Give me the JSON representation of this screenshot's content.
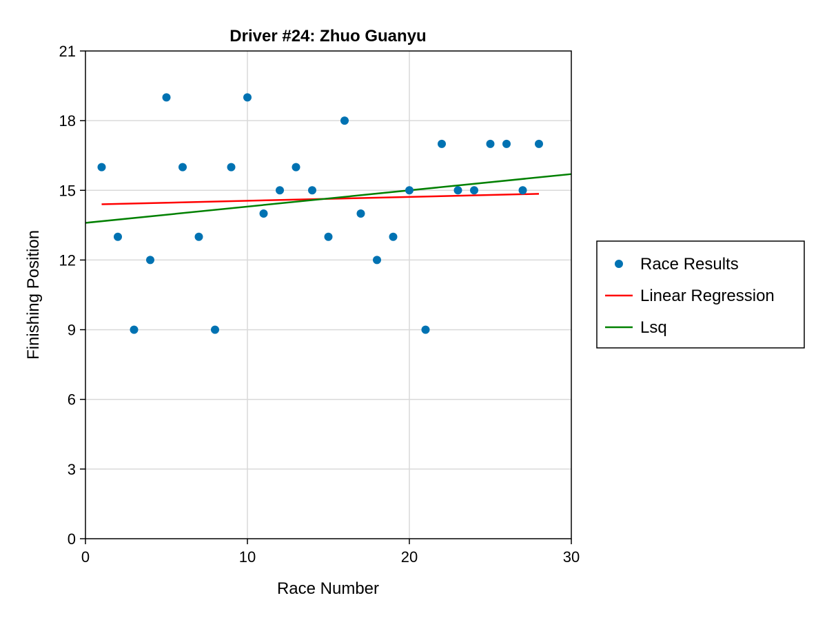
{
  "chart_data": {
    "type": "scatter",
    "title": "Driver #24: Zhuo Guanyu",
    "xlabel": "Race Number",
    "ylabel": "Finishing Position",
    "xlim": [
      0,
      30
    ],
    "ylim": [
      0,
      21
    ],
    "xticks": [
      0,
      10,
      20,
      30
    ],
    "yticks": [
      0,
      3,
      6,
      9,
      12,
      15,
      18,
      21
    ],
    "grid": true,
    "legend_position": "right",
    "series": [
      {
        "name": "Race Results",
        "kind": "scatter",
        "color": "#0072b2",
        "x": [
          1,
          2,
          3,
          4,
          5,
          6,
          7,
          8,
          9,
          10,
          11,
          12,
          13,
          14,
          15,
          16,
          17,
          18,
          19,
          20,
          21,
          22,
          23,
          24,
          25,
          26,
          27,
          28
        ],
        "y": [
          16,
          13,
          9,
          12,
          19,
          16,
          13,
          9,
          16,
          19,
          14,
          15,
          16,
          15,
          13,
          18,
          14,
          12,
          13,
          15,
          9,
          17,
          15,
          15,
          17,
          17,
          15,
          17
        ]
      },
      {
        "name": "Linear Regression",
        "kind": "line",
        "color": "#ff0000",
        "x": [
          1,
          28
        ],
        "y": [
          14.4,
          14.85
        ]
      },
      {
        "name": "Lsq",
        "kind": "line",
        "color": "#008000",
        "x": [
          0,
          30
        ],
        "y": [
          13.6,
          15.7
        ]
      }
    ]
  }
}
